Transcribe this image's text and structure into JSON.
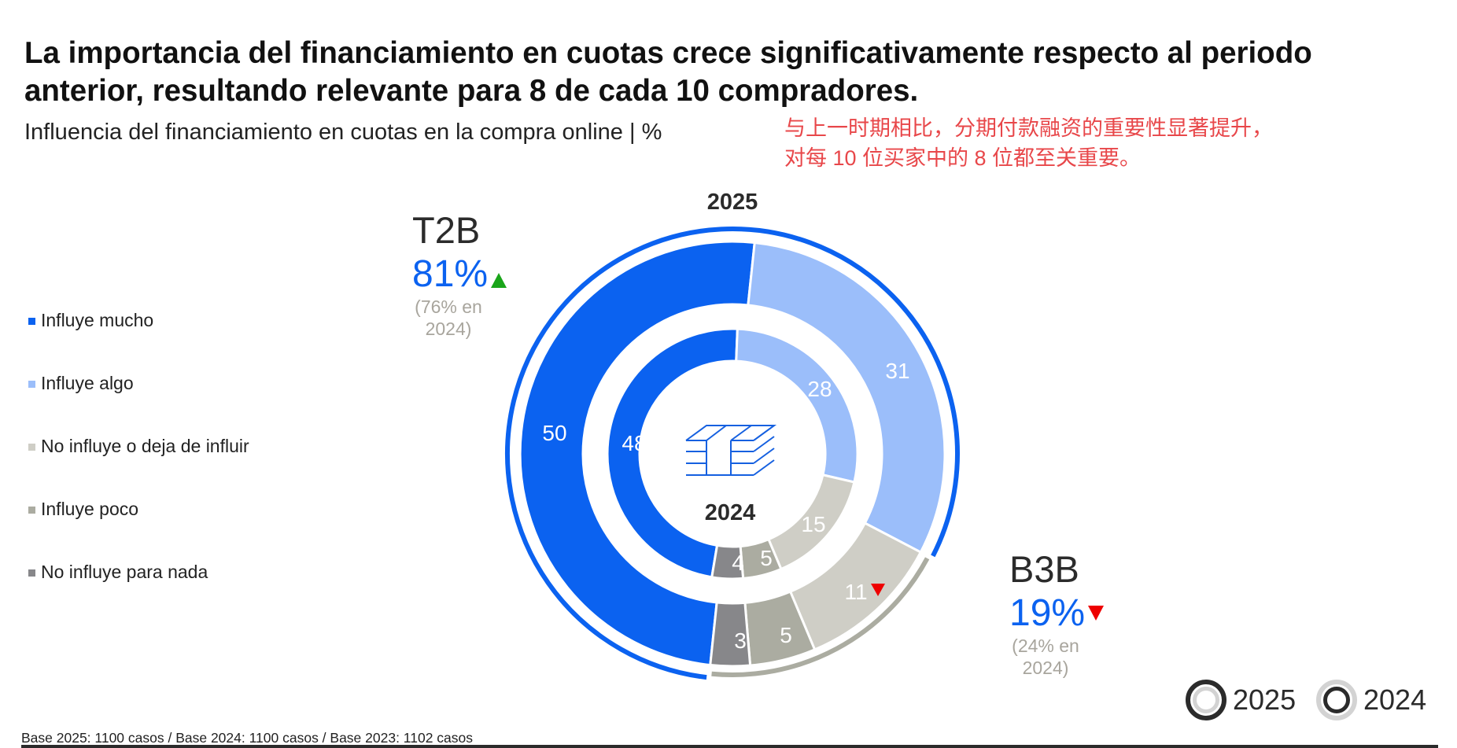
{
  "header": {
    "title_line1": "La importancia del financiamiento en cuotas crece significativamente respecto al periodo",
    "title_line2": "anterior, resultando relevante para 8 de cada 10 compradores.",
    "subtitle": "Influencia del financiamiento en cuotas en la compra online | %",
    "annotation_line1": "与上一时期相比，分期付款融资的重要性显著提升，",
    "annotation_line2": "对每 10 位买家中的 8 位都至关重要。"
  },
  "legend": {
    "items": [
      {
        "label": "Influye mucho",
        "color": "#0b62f0"
      },
      {
        "label": "Influye algo",
        "color": "#9bbefa"
      },
      {
        "label": "No influye o deja de influir",
        "color": "#cfcec6"
      },
      {
        "label": "Influye poco",
        "color": "#abaca1"
      },
      {
        "label": "No influye para nada",
        "color": "#87878a"
      }
    ]
  },
  "kpis": {
    "t2b": {
      "name": "T2B",
      "value": "81%",
      "trend": "up",
      "prev_line1": "(76% en",
      "prev_line2": "2024)",
      "trend_color": "#1aa51a"
    },
    "b3b": {
      "name": "B3B",
      "value": "19%",
      "trend": "down",
      "prev_line1": "(24% en",
      "prev_line2": "2024)",
      "trend_color": "#ee0000"
    }
  },
  "ring_legend": {
    "outer_label": "2025",
    "inner_label": "2024"
  },
  "footer": {
    "base_note": "Base 2025: 1100 casos / Base 2024: 1100 casos / Base 2023: 1102 casos"
  },
  "center_icon": "money-stack-icon",
  "chart_data": {
    "type": "pie",
    "subtype": "nested-donut",
    "title": "Influencia del financiamiento en cuotas en la compra online | %",
    "categories": [
      "Influye mucho",
      "Influye algo",
      "No influye o deja de influir",
      "Influye poco",
      "No influye para nada"
    ],
    "colors": [
      "#0b62f0",
      "#9bbefa",
      "#cfcec6",
      "#abaca1",
      "#87878a"
    ],
    "series": [
      {
        "name": "2025",
        "ring": "outer",
        "values": [
          50,
          31,
          11,
          5,
          3
        ],
        "label_colors": [
          "#ffffff",
          "#ffffff",
          "#ffffff",
          "#ffffff",
          "#ffffff"
        ],
        "annotations": {
          "No influye o deja de influir": "down"
        }
      },
      {
        "name": "2024",
        "ring": "inner",
        "values": [
          48,
          28,
          15,
          5,
          4
        ]
      }
    ],
    "groups": [
      {
        "name": "T2B",
        "members": [
          "Influye mucho",
          "Influye algo"
        ],
        "value_2025": 81,
        "value_2024": 76,
        "trend": "up",
        "arc_color": "#0b62f0"
      },
      {
        "name": "B3B",
        "members": [
          "No influye o deja de influir",
          "Influye poco",
          "No influye para nada"
        ],
        "value_2025": 19,
        "value_2024": 24,
        "trend": "down",
        "arc_color": "#abaca1"
      }
    ],
    "ring_labels": {
      "outer": "2025",
      "inner": "2024"
    },
    "unit": "%",
    "legend_position": "left"
  }
}
